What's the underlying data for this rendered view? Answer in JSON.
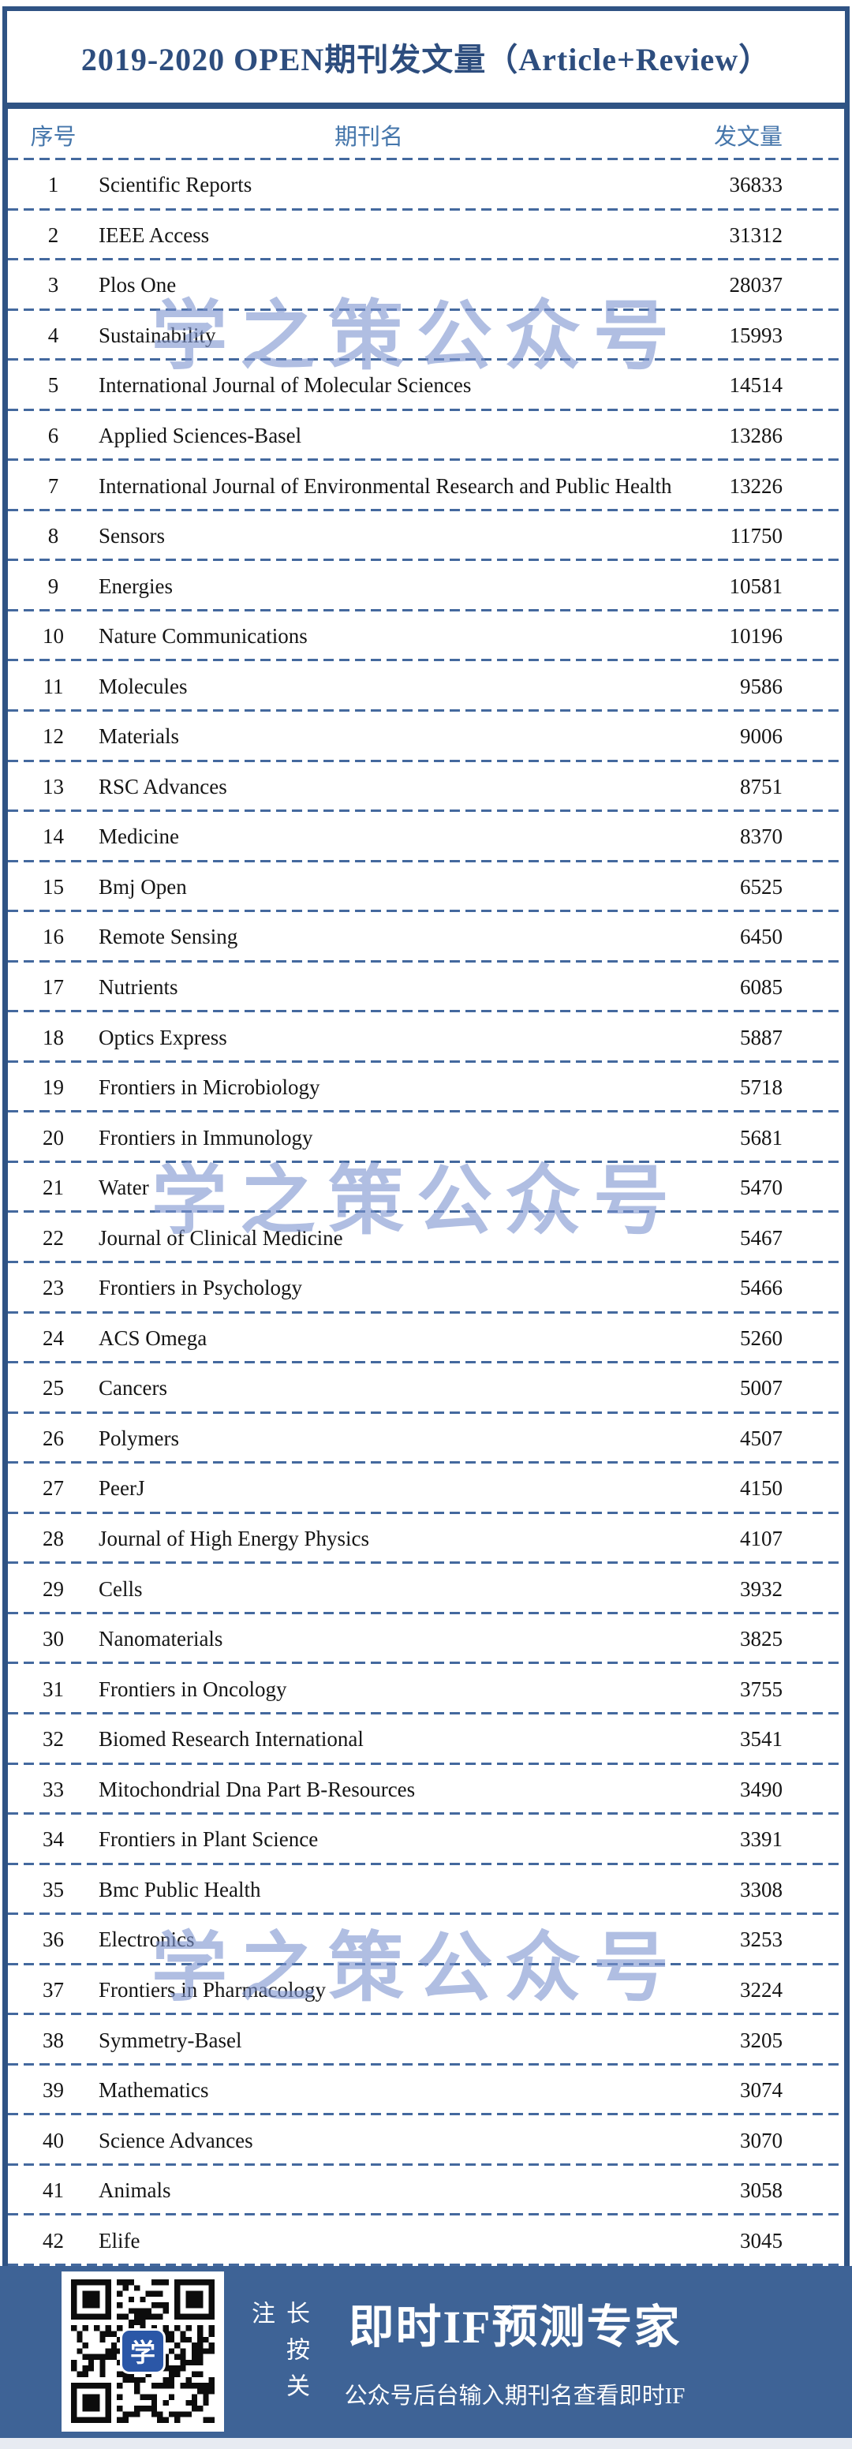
{
  "chart_data": {
    "type": "table",
    "title": "2019-2020 OPEN期刊发文量（Article+Review）",
    "columns": [
      "序号",
      "期刊名",
      "发文量"
    ],
    "rows": [
      [
        1,
        "Scientific Reports",
        36833
      ],
      [
        2,
        "IEEE Access",
        31312
      ],
      [
        3,
        "Plos One",
        28037
      ],
      [
        4,
        "Sustainability",
        15993
      ],
      [
        5,
        "International Journal of Molecular Sciences",
        14514
      ],
      [
        6,
        "Applied Sciences-Basel",
        13286
      ],
      [
        7,
        "International Journal of Environmental Research and Public Health",
        13226
      ],
      [
        8,
        "Sensors",
        11750
      ],
      [
        9,
        "Energies",
        10581
      ],
      [
        10,
        "Nature Communications",
        10196
      ],
      [
        11,
        "Molecules",
        9586
      ],
      [
        12,
        "Materials",
        9006
      ],
      [
        13,
        "RSC Advances",
        8751
      ],
      [
        14,
        "Medicine",
        8370
      ],
      [
        15,
        "Bmj Open",
        6525
      ],
      [
        16,
        "Remote Sensing",
        6450
      ],
      [
        17,
        "Nutrients",
        6085
      ],
      [
        18,
        "Optics Express",
        5887
      ],
      [
        19,
        "Frontiers in Microbiology",
        5718
      ],
      [
        20,
        "Frontiers in Immunology",
        5681
      ],
      [
        21,
        "Water",
        5470
      ],
      [
        22,
        "Journal of Clinical Medicine",
        5467
      ],
      [
        23,
        "Frontiers in Psychology",
        5466
      ],
      [
        24,
        "ACS Omega",
        5260
      ],
      [
        25,
        "Cancers",
        5007
      ],
      [
        26,
        "Polymers",
        4507
      ],
      [
        27,
        "PeerJ",
        4150
      ],
      [
        28,
        "Journal of High Energy Physics",
        4107
      ],
      [
        29,
        "Cells",
        3932
      ],
      [
        30,
        "Nanomaterials",
        3825
      ],
      [
        31,
        "Frontiers in Oncology",
        3755
      ],
      [
        32,
        "Biomed Research International",
        3541
      ],
      [
        33,
        "Mitochondrial Dna Part B-Resources",
        3490
      ],
      [
        34,
        "Frontiers in Plant Science",
        3391
      ],
      [
        35,
        "Bmc Public Health",
        3308
      ],
      [
        36,
        "Electronics",
        3253
      ],
      [
        37,
        "Frontiers in Pharmacology",
        3224
      ],
      [
        38,
        "Symmetry-Basel",
        3205
      ],
      [
        39,
        "Mathematics",
        3074
      ],
      [
        40,
        "Science Advances",
        3070
      ],
      [
        41,
        "Animals",
        3058
      ],
      [
        42,
        "Elife",
        3045
      ]
    ],
    "layout_hints": {
      "grid": "dashed horizontal separators between rows",
      "number_alignment": "right",
      "legend_position": "none"
    }
  },
  "watermark": {
    "text": "学之策公众号"
  },
  "footer": {
    "press_label_vertical": "长按关注",
    "headline": "即时IF预测专家",
    "subline": "公众号后台输入期刊名查看即时IF",
    "qr_logo_char": "学"
  },
  "colors": {
    "frame_blue": "#2f5384",
    "title_text": "#2d4d7e",
    "header_text": "#4576ab",
    "dashed_separator": "#44699e",
    "watermark_blue": "#7c92ce",
    "footer_background": "#3e6396",
    "qr_logo_blue": "#2b57a7",
    "bottom_strip": "#e7ebf2"
  }
}
